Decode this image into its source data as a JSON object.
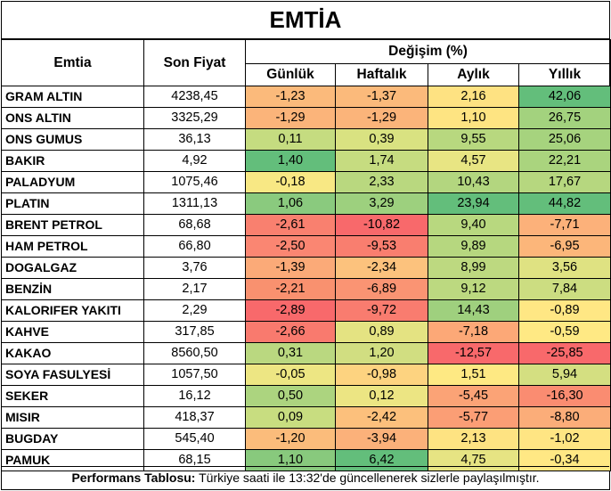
{
  "title": "EMTİA",
  "headers": {
    "name": "Emtia",
    "price": "Son Fiyat",
    "change_group": "Değişim (%)",
    "daily": "Günlük",
    "weekly": "Haftalık",
    "monthly": "Aylık",
    "yearly": "Yıllık"
  },
  "rows": [
    {
      "name": "GRAM ALTIN",
      "price": "4238,45",
      "daily": "-1,23",
      "weekly": "-1,37",
      "monthly": "2,16",
      "yearly": "42,06",
      "colors": [
        "#FBBA7B",
        "#FBBA7B",
        "#FEE282",
        "#63BE7B"
      ]
    },
    {
      "name": "ONS ALTIN",
      "price": "3325,29",
      "daily": "-1,29",
      "weekly": "-1,29",
      "monthly": "1,10",
      "yearly": "26,75",
      "colors": [
        "#FBB47A",
        "#FBB47A",
        "#FEE482",
        "#A3D27E"
      ]
    },
    {
      "name": "ONS GUMUS",
      "price": "36,13",
      "daily": "0,11",
      "weekly": "0,39",
      "monthly": "9,55",
      "yearly": "25,06",
      "colors": [
        "#C5DC80",
        "#D9E281",
        "#B8D87F",
        "#A6D37E"
      ]
    },
    {
      "name": "BAKIR",
      "price": "4,92",
      "daily": "1,40",
      "weekly": "1,74",
      "monthly": "4,57",
      "yearly": "22,21",
      "colors": [
        "#63BE7B",
        "#C6DC80",
        "#E8E583",
        "#AAD47E"
      ]
    },
    {
      "name": "PALADYUM",
      "price": "1075,46",
      "daily": "-0,18",
      "weekly": "2,33",
      "monthly": "10,43",
      "yearly": "17,67",
      "colors": [
        "#F8E884",
        "#B9D87F",
        "#B3D67F",
        "#B6D77F"
      ]
    },
    {
      "name": "PLATIN",
      "price": "1311,13",
      "daily": "1,06",
      "weekly": "3,29",
      "monthly": "23,94",
      "yearly": "44,82",
      "colors": [
        "#8ACA7E",
        "#9DD07E",
        "#63BE7B",
        "#63BE7B"
      ]
    },
    {
      "name": "BRENT PETROL",
      "price": "68,68",
      "daily": "-2,61",
      "weekly": "-10,82",
      "monthly": "9,40",
      "yearly": "-7,71",
      "colors": [
        "#F9806F",
        "#F8696B",
        "#B8D87F",
        "#FCB17A"
      ]
    },
    {
      "name": "HAM PETROL",
      "price": "66,80",
      "daily": "-2,50",
      "weekly": "-9,53",
      "monthly": "9,89",
      "yearly": "-6,95",
      "colors": [
        "#FA8672",
        "#F97E6F",
        "#B6D77F",
        "#FCB67A"
      ]
    },
    {
      "name": "DOGALGAZ",
      "price": "3,76",
      "daily": "-1,39",
      "weekly": "-2,34",
      "monthly": "8,99",
      "yearly": "3,56",
      "colors": [
        "#FBAA78",
        "#FCC27D",
        "#BDD980",
        "#DFE282"
      ]
    },
    {
      "name": "BENZİN",
      "price": "2,17",
      "daily": "-2,21",
      "weekly": "-6,89",
      "monthly": "9,12",
      "yearly": "7,84",
      "colors": [
        "#F9916F",
        "#FA9473",
        "#BCD980",
        "#CCDD81"
      ]
    },
    {
      "name": "KALORIFER YAKITI",
      "price": "2,29",
      "daily": "-2,89",
      "weekly": "-9,72",
      "monthly": "14,43",
      "yearly": "-0,89",
      "colors": [
        "#F8696B",
        "#F97C6F",
        "#9FD07E",
        "#FFE784"
      ]
    },
    {
      "name": "KAHVE",
      "price": "317,85",
      "daily": "-2,66",
      "weekly": "0,89",
      "monthly": "-7,18",
      "yearly": "-0,59",
      "colors": [
        "#F97A6E",
        "#E4E382",
        "#FCA877",
        "#FFE984"
      ]
    },
    {
      "name": "KAKAO",
      "price": "8560,50",
      "daily": "0,31",
      "weekly": "1,20",
      "monthly": "-12,57",
      "yearly": "-25,85",
      "colors": [
        "#BAD880",
        "#D1DE81",
        "#F8696B",
        "#F8696B"
      ]
    },
    {
      "name": "SOYA FASULYESİ",
      "price": "1057,50",
      "daily": "-0,05",
      "weekly": "-0,98",
      "monthly": "1,51",
      "yearly": "5,94",
      "colors": [
        "#EDE683",
        "#FDD380",
        "#FEE983",
        "#D4DF81"
      ]
    },
    {
      "name": "SEKER",
      "price": "16,12",
      "daily": "0,50",
      "weekly": "0,12",
      "monthly": "-5,45",
      "yearly": "-16,30",
      "colors": [
        "#ACD47F",
        "#ECE583",
        "#FBA376",
        "#FA8C71"
      ]
    },
    {
      "name": "MISIR",
      "price": "418,37",
      "daily": "0,09",
      "weekly": "-2,42",
      "monthly": "-5,77",
      "yearly": "-8,80",
      "colors": [
        "#C8DD80",
        "#FCC07C",
        "#FB9E75",
        "#FBAD79"
      ]
    },
    {
      "name": "BUGDAY",
      "price": "545,40",
      "daily": "-1,20",
      "weekly": "-3,94",
      "monthly": "2,13",
      "yearly": "-1,02",
      "colors": [
        "#FBBC7B",
        "#FBB17A",
        "#FEE382",
        "#FFE583"
      ]
    },
    {
      "name": "PAMUK",
      "price": "68,15",
      "daily": "1,10",
      "weekly": "6,42",
      "monthly": "4,75",
      "yearly": "-0,34",
      "colors": [
        "#88C97D",
        "#63BE7B",
        "#E6E483",
        "#FFE884"
      ]
    }
  ],
  "footer": {
    "label": "Performans Tablosu:",
    "text": " Türkiye saati ile 13:32'de güncellenerek sizlerle paylaşılmıştır."
  }
}
